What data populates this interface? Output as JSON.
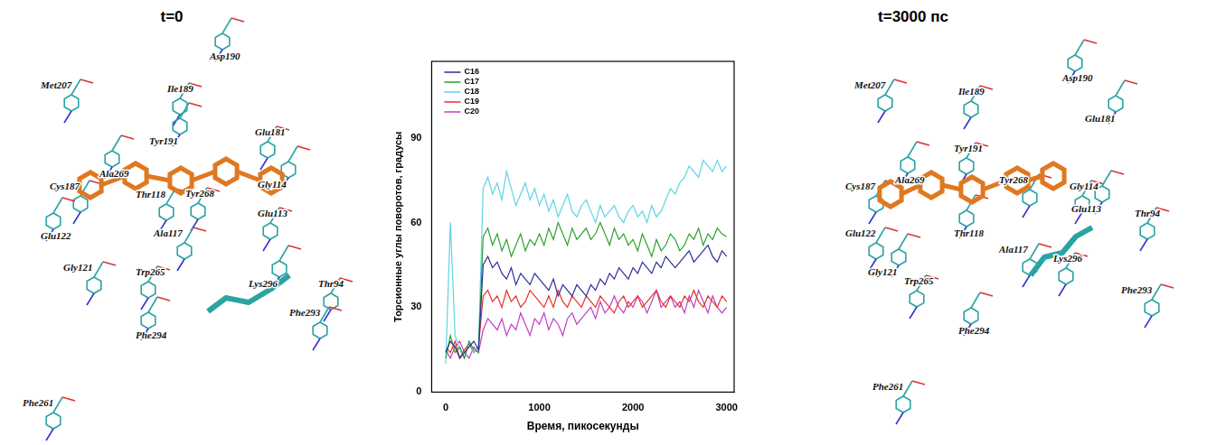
{
  "left_panel": {
    "title": "t=0",
    "residues": [
      "Asp190",
      "Met207",
      "Ile189",
      "Tyr191",
      "Glu181",
      "Cys187",
      "Ala269",
      "Thr118",
      "Tyr268",
      "Gly114",
      "Glu113",
      "Ala117",
      "Glu122",
      "Gly121",
      "Trp265",
      "Lys296",
      "Thr94",
      "Phe293",
      "Phe294",
      "Phe261"
    ]
  },
  "chart_data": {
    "type": "line",
    "x_label": "Время, пикосекунды",
    "y_label": "Торсионные углы поворотов, градусы",
    "x": [
      0,
      50,
      100,
      150,
      200,
      250,
      300,
      350,
      400,
      450,
      500,
      550,
      600,
      650,
      700,
      750,
      800,
      850,
      900,
      950,
      1000,
      1050,
      1100,
      1150,
      1200,
      1250,
      1300,
      1350,
      1400,
      1450,
      1500,
      1550,
      1600,
      1650,
      1700,
      1750,
      1800,
      1850,
      1900,
      1950,
      2000,
      2050,
      2100,
      2150,
      2200,
      2250,
      2300,
      2350,
      2400,
      2450,
      2500,
      2550,
      2600,
      2650,
      2700,
      2750,
      2800,
      2850,
      2900,
      2950,
      3000
    ],
    "series": [
      {
        "name": "C16",
        "color": "#2b2b9a",
        "values": [
          14,
          18,
          16,
          12,
          14,
          16,
          18,
          15,
          45,
          48,
          44,
          46,
          42,
          40,
          44,
          38,
          42,
          40,
          38,
          42,
          40,
          38,
          36,
          40,
          34,
          38,
          36,
          34,
          38,
          36,
          34,
          38,
          36,
          40,
          38,
          42,
          40,
          44,
          42,
          40,
          44,
          42,
          46,
          44,
          42,
          46,
          44,
          48,
          46,
          44,
          46,
          48,
          50,
          46,
          48,
          50,
          52,
          48,
          46,
          50,
          48
        ]
      },
      {
        "name": "C17",
        "color": "#2ca02c",
        "values": [
          12,
          20,
          14,
          16,
          12,
          18,
          15,
          14,
          55,
          58,
          52,
          56,
          50,
          54,
          48,
          52,
          56,
          50,
          54,
          52,
          56,
          52,
          58,
          54,
          60,
          56,
          52,
          58,
          54,
          56,
          58,
          54,
          56,
          60,
          56,
          52,
          58,
          54,
          56,
          52,
          54,
          50,
          56,
          52,
          48,
          54,
          50,
          52,
          56,
          54,
          50,
          52,
          56,
          54,
          58,
          52,
          56,
          54,
          58,
          56,
          55
        ]
      },
      {
        "name": "C18",
        "color": "#5fd3e6",
        "values": [
          10,
          60,
          20,
          15,
          12,
          18,
          14,
          16,
          72,
          76,
          70,
          74,
          68,
          78,
          72,
          66,
          70,
          74,
          68,
          72,
          66,
          70,
          64,
          68,
          62,
          66,
          70,
          64,
          62,
          66,
          68,
          64,
          60,
          66,
          62,
          64,
          66,
          62,
          60,
          64,
          66,
          62,
          64,
          60,
          66,
          62,
          64,
          68,
          72,
          70,
          74,
          76,
          80,
          78,
          76,
          82,
          80,
          78,
          82,
          78,
          80
        ]
      },
      {
        "name": "C19",
        "color": "#e8302a",
        "values": [
          16,
          14,
          18,
          12,
          15,
          17,
          14,
          16,
          34,
          36,
          32,
          34,
          30,
          36,
          32,
          34,
          30,
          32,
          36,
          34,
          32,
          30,
          34,
          30,
          36,
          32,
          30,
          34,
          32,
          30,
          34,
          32,
          30,
          34,
          32,
          30,
          28,
          32,
          34,
          30,
          32,
          34,
          30,
          32,
          34,
          36,
          32,
          30,
          34,
          32,
          30,
          34,
          32,
          36,
          32,
          30,
          34,
          32,
          30,
          34,
          32
        ]
      },
      {
        "name": "C20",
        "color": "#c040c0",
        "values": [
          15,
          12,
          16,
          18,
          14,
          12,
          16,
          14,
          22,
          26,
          24,
          22,
          26,
          20,
          24,
          22,
          28,
          24,
          20,
          26,
          24,
          28,
          22,
          26,
          24,
          20,
          26,
          28,
          24,
          26,
          28,
          30,
          26,
          32,
          28,
          30,
          34,
          30,
          28,
          32,
          30,
          34,
          32,
          28,
          32,
          36,
          30,
          32,
          34,
          30,
          32,
          28,
          34,
          30,
          36,
          32,
          28,
          34,
          30,
          28,
          30
        ]
      }
    ],
    "xlim": [
      -150,
      3080
    ],
    "xticks": [
      0,
      1000,
      2000,
      3000
    ],
    "ylim": [
      0,
      117
    ],
    "yticks": [
      0,
      30,
      60,
      90
    ],
    "grid": false,
    "legend": "upper left"
  },
  "right_panel": {
    "title": "t=3000 пс",
    "residues": [
      "Asp190",
      "Met207",
      "Ile189",
      "Glu181",
      "Tyr191",
      "Cys187",
      "Ala269",
      "Tyr268",
      "Gly114",
      "Glu113",
      "Thr94",
      "Glu122",
      "Thr118",
      "Ala117",
      "Lys296",
      "Gly121",
      "Trp265",
      "Phe293",
      "Phe294",
      "Phe261"
    ]
  }
}
